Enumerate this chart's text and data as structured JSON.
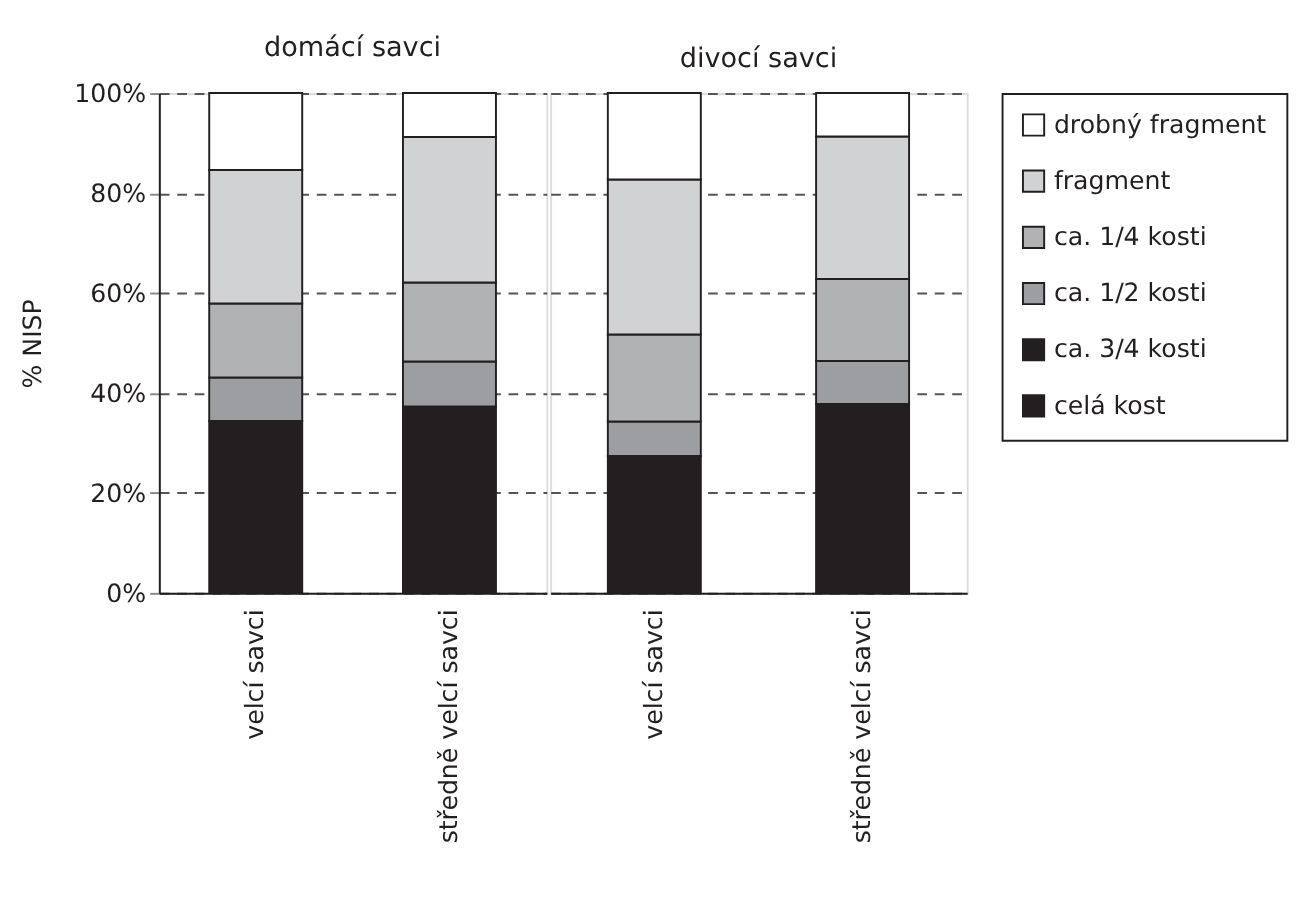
{
  "chart_data": [
    {
      "type": "bar",
      "stacked": true,
      "title": "domácí savci",
      "ylabel": "% NISP",
      "categories": [
        "velcí savci",
        "středně velcí savci"
      ],
      "ylim": [
        0,
        100
      ],
      "yticks": [
        {
          "value": 0,
          "label": "0%"
        },
        {
          "value": 20,
          "label": "20%"
        },
        {
          "value": 40,
          "label": "40%"
        },
        {
          "value": 60,
          "label": "60%"
        },
        {
          "value": 80,
          "label": "80%"
        },
        {
          "value": 100,
          "label": "100%"
        }
      ],
      "grid": "y",
      "legend": "right",
      "series": [
        {
          "name": "celá kost",
          "color": "#231f20",
          "values": [
            34.4,
            37.3
          ]
        },
        {
          "name": "ca. 3/4 kosti",
          "color": "#231f20",
          "values": [
            0,
            0
          ]
        },
        {
          "name": "ca. 1/2 kosti",
          "color": "#9d9ea1",
          "values": [
            8.7,
            9.0
          ]
        },
        {
          "name": "ca. 1/4 kosti",
          "color": "#b1b2b4",
          "values": [
            14.8,
            15.8
          ]
        },
        {
          "name": "fragment",
          "color": "#d1d2d4",
          "values": [
            26.7,
            29.1
          ]
        },
        {
          "name": "drobný fragment",
          "color": "#ffffff",
          "values": [
            15.4,
            8.8
          ]
        }
      ]
    },
    {
      "type": "bar",
      "stacked": true,
      "title": "divocí savci",
      "categories": [
        "velcí savci",
        "středně velcí savci"
      ],
      "ylim": [
        0,
        100
      ],
      "yticks": [
        0,
        20,
        40,
        60,
        80,
        100
      ],
      "grid": "y",
      "tick_labels": "x",
      "series": [
        {
          "color": "#231f20",
          "values": [
            27.4,
            37.8
          ]
        },
        {
          "color": "#231f20",
          "values": [
            0,
            0
          ]
        },
        {
          "color": "#9d9ea1",
          "values": [
            6.9,
            8.6
          ]
        },
        {
          "color": "#b1b2b4",
          "values": [
            17.4,
            16.4
          ]
        },
        {
          "color": "#d1d2d4",
          "values": [
            31.0,
            28.5
          ]
        },
        {
          "color": "#ffffff",
          "values": [
            17.3,
            8.7
          ]
        }
      ]
    }
  ]
}
